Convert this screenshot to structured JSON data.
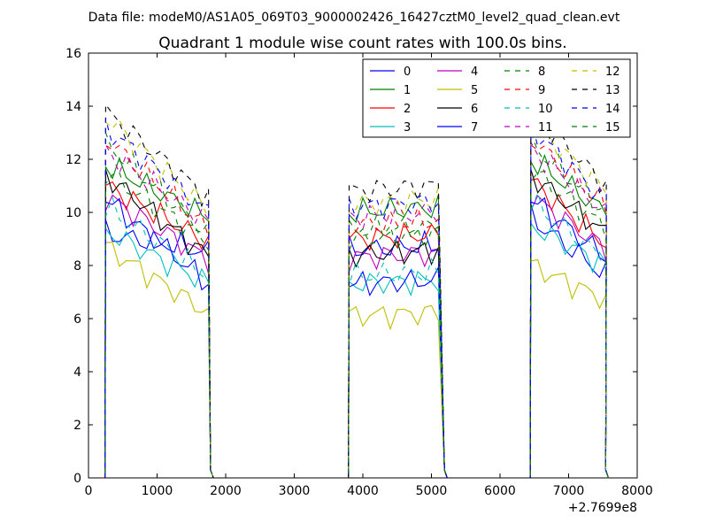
{
  "header": {
    "data_file": "Data file: modeM0/AS1A05_069T03_9000002426_16427cztM0_level2_quad_clean.evt"
  },
  "chart_data": {
    "type": "line",
    "title": "Quadrant 1 module wise count rates with 100.0s bins.",
    "xlabel": "",
    "ylabel": "",
    "x_offset_label": "+2.7699e8",
    "xlim": [
      0,
      8000
    ],
    "ylim": [
      0,
      16
    ],
    "xticks": [
      0,
      1000,
      2000,
      3000,
      4000,
      5000,
      6000,
      7000,
      8000
    ],
    "yticks": [
      0,
      2,
      4,
      6,
      8,
      10,
      12,
      14,
      16
    ],
    "grid": false,
    "legend_position": "top-right",
    "legend_columns": 4,
    "segments": [
      {
        "x_start": 250,
        "x_end": 1750,
        "step": 100
      },
      {
        "x_start": 3800,
        "x_end": 5100,
        "step": 100
      },
      {
        "x_start": 6450,
        "x_end": 7550,
        "step": 100
      }
    ],
    "series": [
      {
        "name": "0",
        "color": "#0000ff",
        "dash": "solid",
        "levels": [
          9.2,
          8.6,
          9.8,
          7.6
        ]
      },
      {
        "name": "1",
        "color": "#008000",
        "dash": "solid",
        "levels": [
          11.8,
          10.0,
          12.0,
          10.0
        ]
      },
      {
        "name": "2",
        "color": "#ff0000",
        "dash": "solid",
        "levels": [
          11.0,
          9.0,
          11.2,
          8.8
        ]
      },
      {
        "name": "3",
        "color": "#00bfbf",
        "dash": "solid",
        "levels": [
          9.3,
          7.3,
          9.5,
          8.0
        ]
      },
      {
        "name": "4",
        "color": "#bf00bf",
        "dash": "solid",
        "levels": [
          10.6,
          8.3,
          10.6,
          8.6
        ]
      },
      {
        "name": "5",
        "color": "#bfbf00",
        "dash": "solid",
        "levels": [
          8.7,
          6.1,
          8.0,
          6.7
        ]
      },
      {
        "name": "6",
        "color": "#000000",
        "dash": "solid",
        "levels": [
          11.4,
          8.4,
          11.4,
          9.2
        ]
      },
      {
        "name": "7",
        "color": "#0000ff",
        "dash": "solid",
        "levels": [
          10.5,
          7.3,
          10.5,
          8.3
        ]
      },
      {
        "name": "8",
        "color": "#008000",
        "dash": "dashed",
        "levels": [
          12.6,
          9.3,
          12.6,
          10.0
        ]
      },
      {
        "name": "9",
        "color": "#ff0000",
        "dash": "dashed",
        "levels": [
          12.8,
          9.5,
          12.8,
          10.2
        ]
      },
      {
        "name": "10",
        "color": "#00bfbf",
        "dash": "dashed",
        "levels": [
          10.2,
          7.6,
          10.4,
          8.2
        ]
      },
      {
        "name": "11",
        "color": "#bf00bf",
        "dash": "dashed",
        "levels": [
          12.3,
          9.8,
          12.4,
          10.0
        ]
      },
      {
        "name": "12",
        "color": "#bfbf00",
        "dash": "dashed",
        "levels": [
          13.6,
          10.3,
          13.4,
          10.8
        ]
      },
      {
        "name": "13",
        "color": "#000000",
        "dash": "dashed",
        "levels": [
          13.8,
          10.8,
          13.8,
          11.0
        ]
      },
      {
        "name": "14",
        "color": "#0000ff",
        "dash": "dashed",
        "levels": [
          13.2,
          10.2,
          13.2,
          10.4
        ]
      },
      {
        "name": "15",
        "color": "#008000",
        "dash": "dashed",
        "levels": [
          11.5,
          9.0,
          11.6,
          9.4
        ]
      }
    ]
  }
}
